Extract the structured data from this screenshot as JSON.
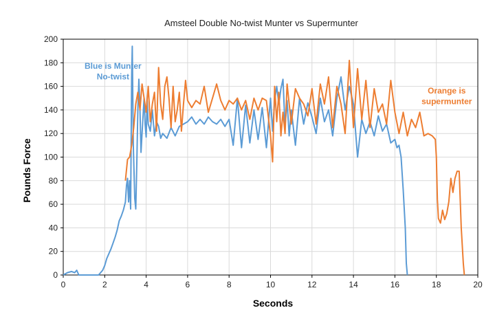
{
  "chart_data": {
    "type": "line",
    "title": "Amsteel Double No-twist Munter vs Supermunter",
    "xlabel": "Seconds",
    "ylabel": "Pounds Force",
    "xlim": [
      0,
      20
    ],
    "ylim": [
      0,
      200
    ],
    "xticks": [
      0,
      2,
      4,
      6,
      8,
      10,
      12,
      14,
      16,
      18,
      20
    ],
    "yticks": [
      0,
      20,
      40,
      60,
      80,
      100,
      120,
      140,
      160,
      180,
      200
    ],
    "grid": {
      "x": true,
      "y": true
    },
    "legend": "none",
    "series": [
      {
        "color": "#5B9BD5",
        "points": [
          [
            0,
            0
          ],
          [
            0.2,
            2
          ],
          [
            0.4,
            3
          ],
          [
            0.55,
            2
          ],
          [
            0.65,
            4
          ],
          [
            0.75,
            0
          ],
          [
            1.7,
            0
          ],
          [
            1.8,
            2
          ],
          [
            1.9,
            4
          ],
          [
            2.0,
            8
          ],
          [
            2.1,
            14
          ],
          [
            2.2,
            18
          ],
          [
            2.3,
            22
          ],
          [
            2.4,
            27
          ],
          [
            2.5,
            32
          ],
          [
            2.6,
            38
          ],
          [
            2.7,
            46
          ],
          [
            2.8,
            50
          ],
          [
            2.9,
            55
          ],
          [
            3.0,
            62
          ],
          [
            3.05,
            76
          ],
          [
            3.1,
            82
          ],
          [
            3.15,
            62
          ],
          [
            3.2,
            80
          ],
          [
            3.25,
            56
          ],
          [
            3.3,
            168
          ],
          [
            3.33,
            194
          ],
          [
            3.38,
            110
          ],
          [
            3.45,
            65
          ],
          [
            3.5,
            56
          ],
          [
            3.55,
            95
          ],
          [
            3.6,
            140
          ],
          [
            3.65,
            166
          ],
          [
            3.7,
            140
          ],
          [
            3.75,
            104
          ],
          [
            3.8,
            120
          ],
          [
            3.85,
            135
          ],
          [
            3.9,
            150
          ],
          [
            3.95,
            128
          ],
          [
            4.0,
            117
          ],
          [
            4.05,
            148
          ],
          [
            4.1,
            128
          ],
          [
            4.2,
            122
          ],
          [
            4.3,
            140
          ],
          [
            4.4,
            118
          ],
          [
            4.5,
            130
          ],
          [
            4.6,
            126
          ],
          [
            4.7,
            116
          ],
          [
            4.8,
            120
          ],
          [
            5.0,
            116
          ],
          [
            5.2,
            125
          ],
          [
            5.4,
            118
          ],
          [
            5.6,
            126
          ],
          [
            5.8,
            128
          ],
          [
            6.0,
            130
          ],
          [
            6.2,
            134
          ],
          [
            6.4,
            128
          ],
          [
            6.6,
            132
          ],
          [
            6.8,
            128
          ],
          [
            7.0,
            134
          ],
          [
            7.2,
            130
          ],
          [
            7.4,
            128
          ],
          [
            7.6,
            132
          ],
          [
            7.8,
            126
          ],
          [
            8.0,
            132
          ],
          [
            8.2,
            110
          ],
          [
            8.4,
            150
          ],
          [
            8.6,
            108
          ],
          [
            8.8,
            144
          ],
          [
            9.0,
            112
          ],
          [
            9.2,
            140
          ],
          [
            9.4,
            115
          ],
          [
            9.6,
            142
          ],
          [
            9.8,
            108
          ],
          [
            10.0,
            150
          ],
          [
            10.1,
            122
          ],
          [
            10.2,
            148
          ],
          [
            10.3,
            160
          ],
          [
            10.4,
            145
          ],
          [
            10.5,
            158
          ],
          [
            10.6,
            166
          ],
          [
            10.7,
            126
          ],
          [
            10.8,
            148
          ],
          [
            10.9,
            118
          ],
          [
            11.0,
            140
          ],
          [
            11.2,
            110
          ],
          [
            11.4,
            150
          ],
          [
            11.6,
            128
          ],
          [
            11.8,
            146
          ],
          [
            12.0,
            134
          ],
          [
            12.2,
            120
          ],
          [
            12.4,
            150
          ],
          [
            12.6,
            130
          ],
          [
            12.8,
            140
          ],
          [
            13.0,
            118
          ],
          [
            13.2,
            150
          ],
          [
            13.4,
            168
          ],
          [
            13.6,
            140
          ],
          [
            13.8,
            160
          ],
          [
            14.0,
            145
          ],
          [
            14.2,
            100
          ],
          [
            14.4,
            132
          ],
          [
            14.6,
            120
          ],
          [
            14.8,
            130
          ],
          [
            15.0,
            118
          ],
          [
            15.2,
            135
          ],
          [
            15.4,
            122
          ],
          [
            15.6,
            128
          ],
          [
            15.8,
            112
          ],
          [
            16.0,
            115
          ],
          [
            16.1,
            108
          ],
          [
            16.2,
            110
          ],
          [
            16.3,
            100
          ],
          [
            16.4,
            72
          ],
          [
            16.5,
            40
          ],
          [
            16.55,
            10
          ],
          [
            16.6,
            0
          ]
        ]
      },
      {
        "color": "#ED7D31",
        "points": [
          [
            3.0,
            80
          ],
          [
            3.1,
            98
          ],
          [
            3.2,
            100
          ],
          [
            3.3,
            110
          ],
          [
            3.4,
            125
          ],
          [
            3.5,
            145
          ],
          [
            3.6,
            155
          ],
          [
            3.7,
            140
          ],
          [
            3.8,
            162
          ],
          [
            3.9,
            150
          ],
          [
            4.0,
            138
          ],
          [
            4.1,
            160
          ],
          [
            4.2,
            130
          ],
          [
            4.3,
            145
          ],
          [
            4.4,
            155
          ],
          [
            4.5,
            122
          ],
          [
            4.6,
            176
          ],
          [
            4.7,
            145
          ],
          [
            4.8,
            132
          ],
          [
            4.9,
            160
          ],
          [
            5.0,
            168
          ],
          [
            5.1,
            150
          ],
          [
            5.2,
            125
          ],
          [
            5.3,
            160
          ],
          [
            5.4,
            130
          ],
          [
            5.5,
            140
          ],
          [
            5.6,
            155
          ],
          [
            5.7,
            122
          ],
          [
            5.8,
            145
          ],
          [
            5.9,
            165
          ],
          [
            6.0,
            148
          ],
          [
            6.2,
            142
          ],
          [
            6.4,
            148
          ],
          [
            6.6,
            145
          ],
          [
            6.8,
            160
          ],
          [
            7.0,
            138
          ],
          [
            7.2,
            150
          ],
          [
            7.4,
            162
          ],
          [
            7.6,
            148
          ],
          [
            7.8,
            140
          ],
          [
            8.0,
            148
          ],
          [
            8.2,
            145
          ],
          [
            8.4,
            150
          ],
          [
            8.6,
            140
          ],
          [
            8.8,
            148
          ],
          [
            9.0,
            132
          ],
          [
            9.2,
            150
          ],
          [
            9.4,
            140
          ],
          [
            9.6,
            150
          ],
          [
            9.8,
            148
          ],
          [
            10.0,
            118
          ],
          [
            10.1,
            96
          ],
          [
            10.2,
            160
          ],
          [
            10.3,
            130
          ],
          [
            10.4,
            155
          ],
          [
            10.5,
            118
          ],
          [
            10.6,
            138
          ],
          [
            10.7,
            120
          ],
          [
            10.8,
            162
          ],
          [
            11.0,
            128
          ],
          [
            11.2,
            158
          ],
          [
            11.4,
            150
          ],
          [
            11.6,
            145
          ],
          [
            11.8,
            135
          ],
          [
            12.0,
            158
          ],
          [
            12.2,
            128
          ],
          [
            12.4,
            162
          ],
          [
            12.6,
            145
          ],
          [
            12.8,
            168
          ],
          [
            13.0,
            125
          ],
          [
            13.2,
            160
          ],
          [
            13.4,
            145
          ],
          [
            13.6,
            120
          ],
          [
            13.8,
            182
          ],
          [
            14.0,
            125
          ],
          [
            14.2,
            175
          ],
          [
            14.4,
            132
          ],
          [
            14.6,
            165
          ],
          [
            14.8,
            125
          ],
          [
            15.0,
            158
          ],
          [
            15.2,
            138
          ],
          [
            15.4,
            145
          ],
          [
            15.6,
            128
          ],
          [
            15.8,
            165
          ],
          [
            16.0,
            138
          ],
          [
            16.2,
            120
          ],
          [
            16.4,
            138
          ],
          [
            16.6,
            118
          ],
          [
            16.8,
            132
          ],
          [
            17.0,
            125
          ],
          [
            17.2,
            138
          ],
          [
            17.4,
            118
          ],
          [
            17.6,
            120
          ],
          [
            17.8,
            118
          ],
          [
            17.95,
            115
          ],
          [
            18.0,
            100
          ],
          [
            18.05,
            64
          ],
          [
            18.1,
            48
          ],
          [
            18.2,
            44
          ],
          [
            18.3,
            55
          ],
          [
            18.4,
            47
          ],
          [
            18.5,
            52
          ],
          [
            18.6,
            62
          ],
          [
            18.7,
            82
          ],
          [
            18.8,
            70
          ],
          [
            18.9,
            82
          ],
          [
            19.0,
            88
          ],
          [
            19.1,
            88
          ],
          [
            19.2,
            40
          ],
          [
            19.3,
            10
          ],
          [
            19.35,
            0
          ]
        ]
      }
    ],
    "annotations": [
      {
        "text": "Blue is Munter",
        "color": "#5B9BD5",
        "x": 2.4,
        "y": 175
      },
      {
        "text": "No-twist",
        "color": "#5B9BD5",
        "x": 2.4,
        "y": 166
      },
      {
        "text": "Orange is",
        "color": "#ED7D31",
        "x": 18.5,
        "y": 154
      },
      {
        "text": "supermunter",
        "color": "#ED7D31",
        "x": 18.5,
        "y": 145
      }
    ]
  }
}
